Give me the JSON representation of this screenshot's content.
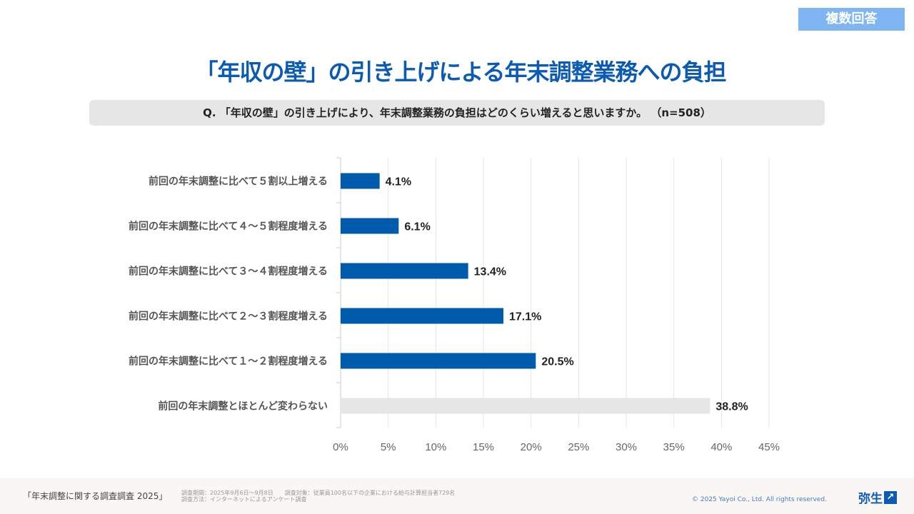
{
  "badge": "複数回答",
  "title": "「年収の壁」の引き上げによる年末調整業務への負担",
  "question": "Q. 「年収の壁」の引き上げにより、年末調整業務の負担はどのくらい増えると思いますか。 （n=508）",
  "chart_data": {
    "type": "bar",
    "orientation": "horizontal",
    "categories": [
      "前回の年末調整に比べて５割以上増える",
      "前回の年末調整に比べて４～５割程度増える",
      "前回の年末調整に比べて３～４割程度増える",
      "前回の年末調整に比べて２～３割程度増える",
      "前回の年末調整に比べて１～２割程度増える",
      "前回の年末調整とほとんど変わらない"
    ],
    "values": [
      4.1,
      6.1,
      13.4,
      17.1,
      20.5,
      38.8
    ],
    "data_labels": [
      "4.1%",
      "6.1%",
      "13.4%",
      "17.1%",
      "20.5%",
      "38.8%"
    ],
    "bar_colors": [
      "#005bac",
      "#005bac",
      "#005bac",
      "#005bac",
      "#005bac",
      "#e6e6e6"
    ],
    "xlim": [
      0,
      45
    ],
    "xticks": [
      "0%",
      "5%",
      "10%",
      "15%",
      "20%",
      "25%",
      "30%",
      "35%",
      "40%",
      "45%"
    ],
    "grid": true
  },
  "footer": {
    "survey_name": "「年末調整に関する調査調査 2025」",
    "meta_line1": "調査期間：2025年9月6日～9月8日　　調査対象：従業員100名以下の企業における給与計算担当者729名",
    "meta_line2": "調査方法：インターネットによるアンケート調査",
    "copyright": "© 2025 Yayoi Co., Ltd.  All rights reserved.",
    "logo": "弥生"
  }
}
